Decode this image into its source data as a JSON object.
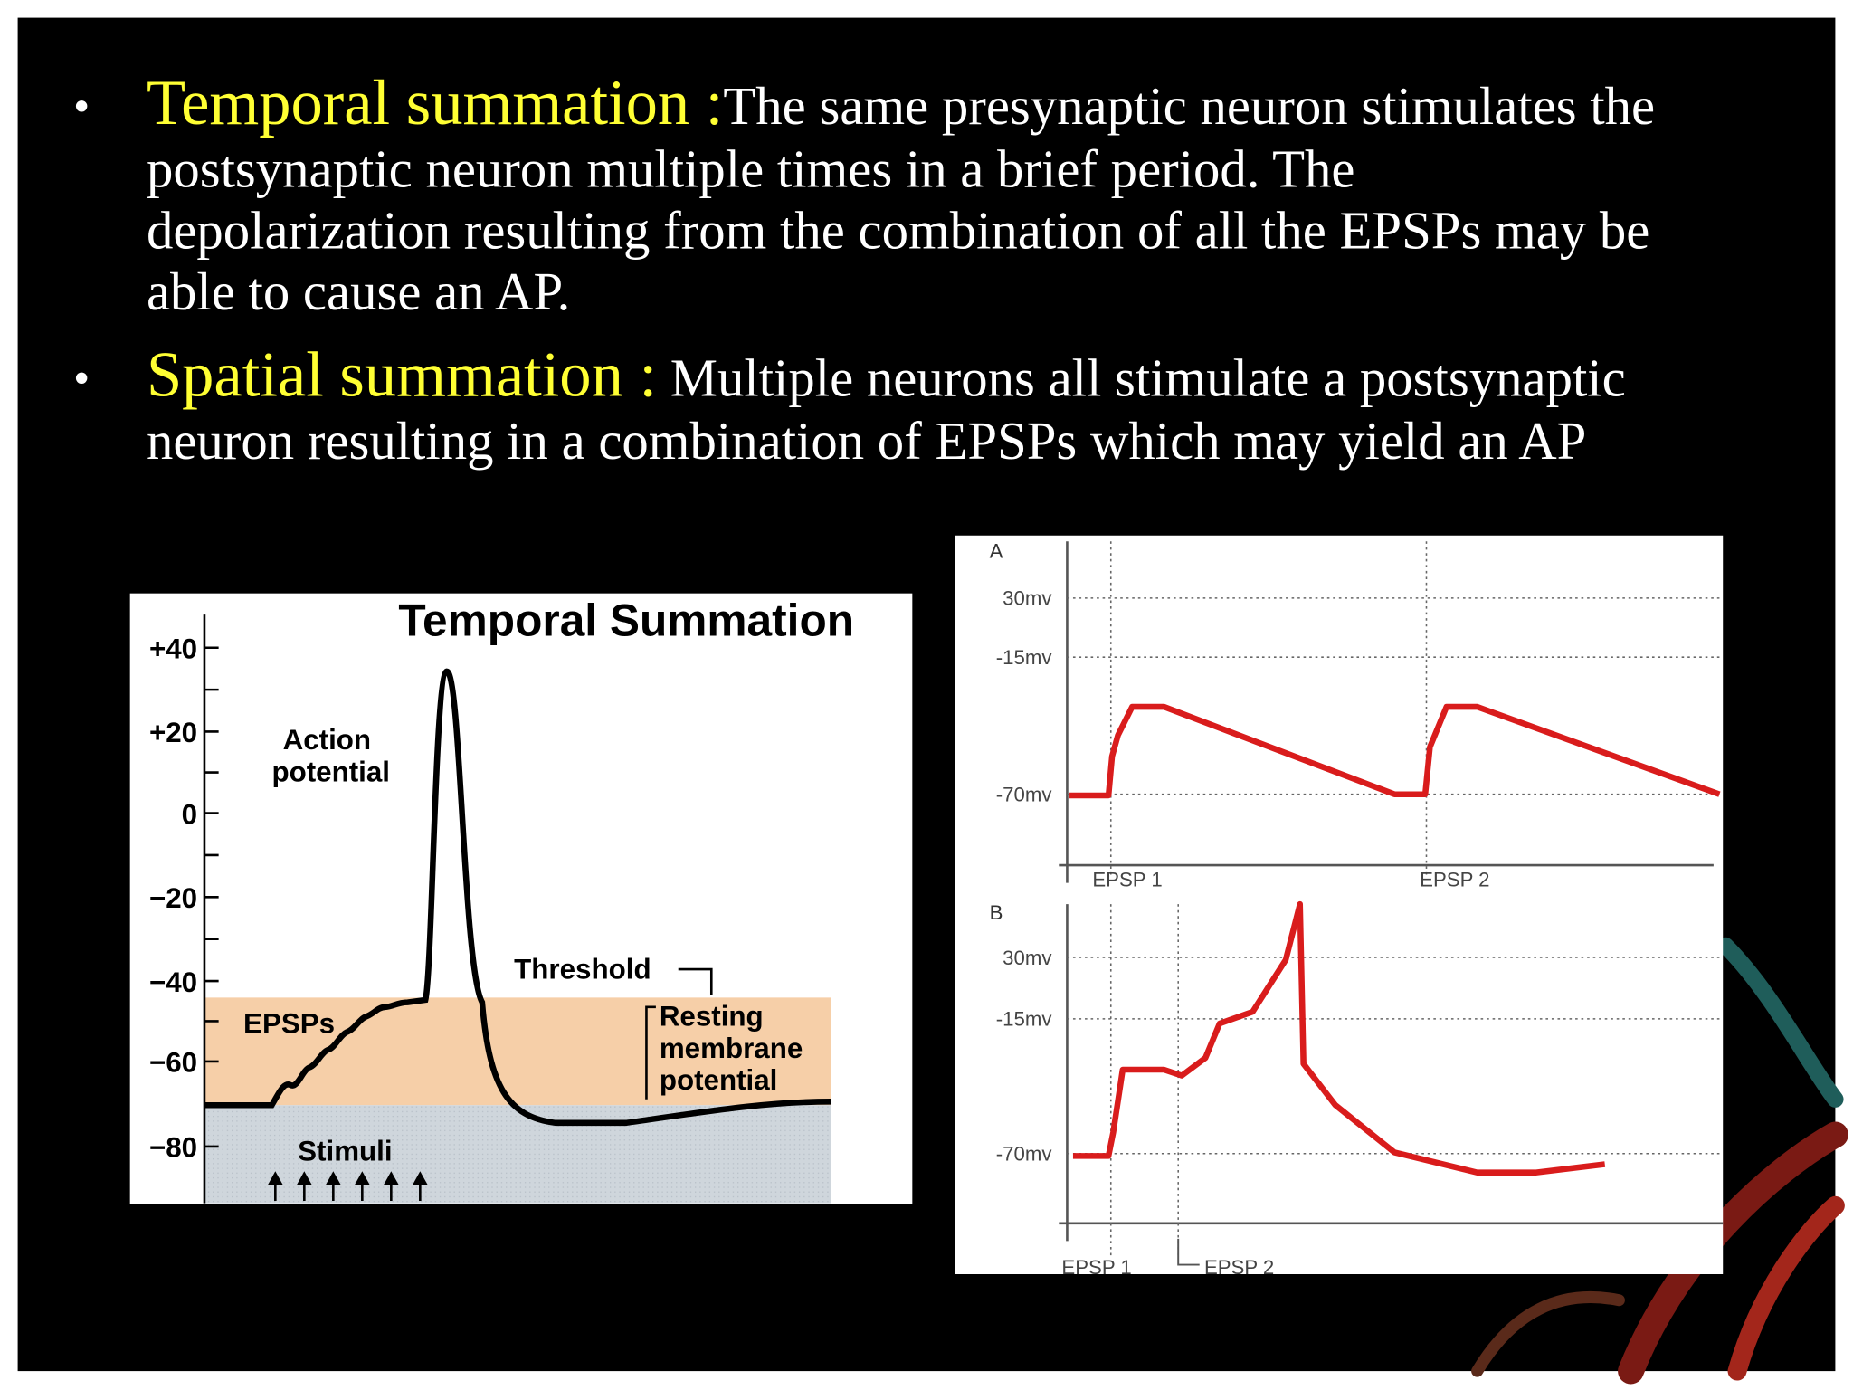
{
  "bullets": [
    {
      "term": "Temporal summation :",
      "lines": [
        "The same presynaptic neuron stimulates the",
        "postsynaptic neuron  multiple times in a brief period.  The",
        "depolarization resulting from the combination of all the EPSPs may be",
        "able to cause an AP."
      ]
    },
    {
      "term": "Spatial summation :",
      "lines": [
        " Multiple neurons all stimulate a postsynaptic",
        "neuron resulting in a combination of EPSPs which may yield an AP"
      ]
    }
  ],
  "figure_left": {
    "title": "Temporal Summation",
    "yticks": [
      "+40",
      "+20",
      "0",
      "−20",
      "−40",
      "−60",
      "−80"
    ],
    "labels": {
      "action_potential": [
        "Action",
        "potential"
      ],
      "threshold": "Threshold",
      "epsps": "EPSPs",
      "resting": [
        "Resting",
        "membrane",
        "potential"
      ],
      "stimuli": "Stimuli"
    }
  },
  "figure_right": {
    "panels": [
      {
        "label": "A",
        "levels": [
          "30mv",
          "-15mv",
          "-70mv"
        ],
        "events": [
          "EPSP 1",
          "EPSP 2"
        ]
      },
      {
        "label": "B",
        "levels": [
          "30mv",
          "-15mv",
          "-70mv"
        ],
        "events": [
          "EPSP 1",
          "EPSP 2"
        ]
      }
    ]
  }
}
